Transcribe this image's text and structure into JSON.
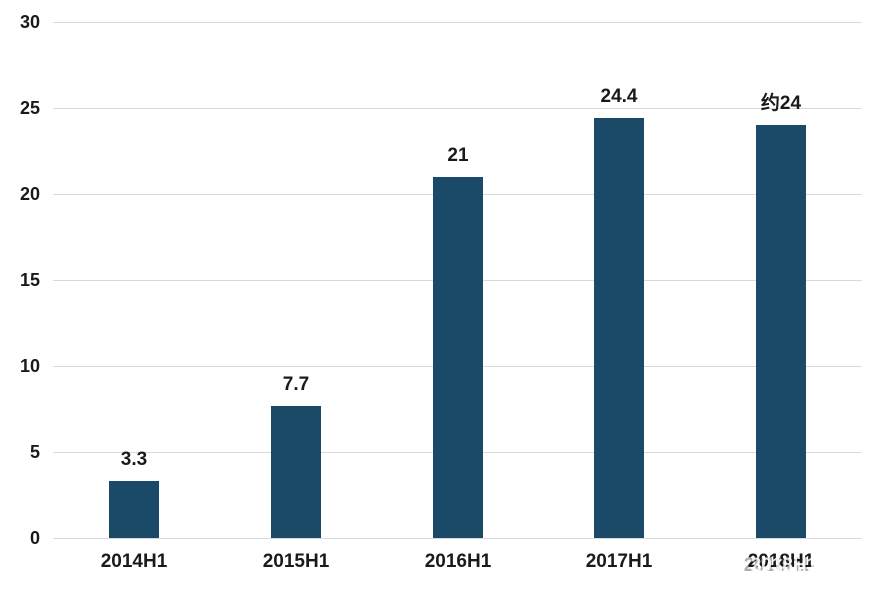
{
  "chart_data": {
    "type": "bar",
    "title": "",
    "xlabel": "",
    "ylabel": "",
    "categories": [
      "2014H1",
      "2015H1",
      "2016H1",
      "2017H1",
      "2018H1"
    ],
    "values": [
      3.3,
      7.7,
      21,
      24.4,
      24
    ],
    "value_labels": [
      "3.3",
      "7.7",
      "21",
      "24.4",
      "约24"
    ],
    "ylim": [
      0,
      30
    ],
    "yticks": [
      0,
      5,
      10,
      15,
      20,
      25,
      30
    ],
    "grid": true,
    "legend_position": "none",
    "bar_color": "#1A4A68",
    "gridline_color": "#D9D9D9",
    "label_color": "#1A1A1A",
    "background_color": "#FFFFFF",
    "last_label_has_overlap_artifact": true
  }
}
